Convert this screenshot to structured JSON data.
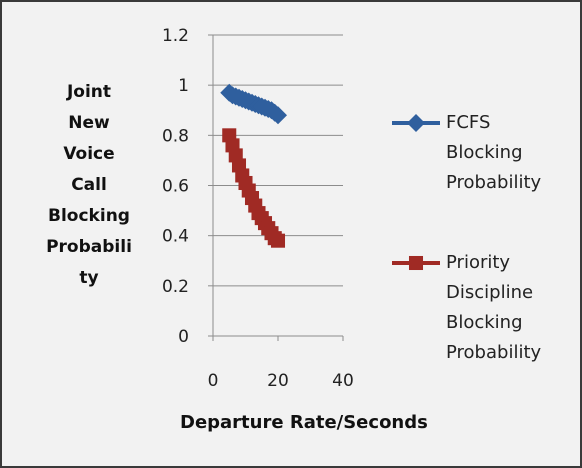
{
  "chart_data": {
    "type": "line",
    "xlabel": "Departure Rate/Seconds",
    "ylabel_lines": [
      "Joint",
      "New",
      "Voice",
      "Call",
      "Blocking",
      "Probabili",
      "ty"
    ],
    "xlim": [
      0,
      40
    ],
    "ylim": [
      0,
      1.2
    ],
    "xticks": [
      "0",
      "20",
      "40"
    ],
    "yticks": [
      "0",
      "0.2",
      "0.4",
      "0.6",
      "0.8",
      "1",
      "1.2"
    ],
    "grid": true,
    "legend_position": "right",
    "series": [
      {
        "name_lines": [
          "FCFS",
          "Blocking",
          "Probability"
        ],
        "color": "#2f5f9e",
        "marker": "diamond",
        "x": [
          5,
          6,
          7,
          8,
          9,
          10,
          11,
          12,
          13,
          14,
          15,
          16,
          17,
          18,
          19,
          20
        ],
        "y": [
          0.97,
          0.96,
          0.955,
          0.95,
          0.945,
          0.94,
          0.935,
          0.93,
          0.925,
          0.92,
          0.915,
          0.91,
          0.905,
          0.9,
          0.89,
          0.88
        ]
      },
      {
        "name_lines": [
          "Priority",
          "Discipline",
          "Blocking",
          "Probability"
        ],
        "color": "#a02a24",
        "marker": "square",
        "x": [
          5,
          6,
          7,
          8,
          9,
          10,
          11,
          12,
          13,
          14,
          15,
          16,
          17,
          18,
          19,
          20
        ],
        "y": [
          0.8,
          0.76,
          0.72,
          0.68,
          0.64,
          0.61,
          0.58,
          0.55,
          0.52,
          0.49,
          0.47,
          0.45,
          0.43,
          0.41,
          0.39,
          0.38
        ]
      }
    ]
  }
}
